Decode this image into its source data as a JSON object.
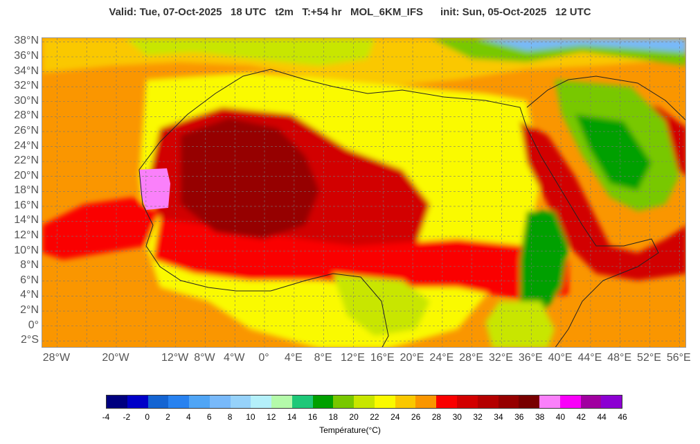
{
  "header": {
    "title": "Valid: Tue, 07-Oct-2025   18 UTC   t2m   T:+54 hr   MOL_6KM_IFS      init: Sun, 05-Oct-2025   12 UTC"
  },
  "map": {
    "variable": "t2m",
    "model": "MOL_6KM_IFS",
    "lat_labels": [
      "38°N",
      "36°N",
      "34°N",
      "32°N",
      "30°N",
      "28°N",
      "26°N",
      "24°N",
      "22°N",
      "20°N",
      "18°N",
      "16°N",
      "14°N",
      "12°N",
      "10°N",
      "8°N",
      "6°N",
      "4°N",
      "2°N",
      "0°",
      "2°S"
    ],
    "lon_labels": [
      "28°W",
      "20°W",
      "12°W",
      "8°W",
      "4°W",
      "0°",
      "4°E",
      "8°E",
      "12°E",
      "16°E",
      "20°E",
      "24°E",
      "28°E",
      "32°E",
      "36°E",
      "40°E",
      "44°E",
      "48°E",
      "52°E",
      "56°E"
    ],
    "lat_values": [
      38,
      36,
      34,
      32,
      30,
      28,
      26,
      24,
      22,
      20,
      18,
      16,
      14,
      12,
      10,
      8,
      6,
      4,
      2,
      0,
      -2
    ],
    "lon_values": [
      -28,
      -20,
      -12,
      -8,
      -4,
      0,
      4,
      8,
      12,
      16,
      20,
      24,
      28,
      32,
      36,
      40,
      44,
      48,
      52,
      56
    ],
    "extent": {
      "lon_min": -30,
      "lon_max": 57,
      "lat_min": -3,
      "lat_max": 38.5
    }
  },
  "colorbar": {
    "title": "Température(°C)",
    "ticks": [
      "-4",
      "-2",
      "0",
      "2",
      "4",
      "6",
      "8",
      "10",
      "12",
      "14",
      "16",
      "18",
      "20",
      "22",
      "24",
      "26",
      "28",
      "30",
      "32",
      "34",
      "36",
      "38",
      "40",
      "42",
      "44",
      "46"
    ],
    "colors": [
      "#00007f",
      "#0000c8",
      "#1464d2",
      "#2882f0",
      "#50a5f5",
      "#78b9fa",
      "#96d2fa",
      "#b4f0fa",
      "#b4faaa",
      "#1ec878",
      "#00a000",
      "#78c800",
      "#c8e600",
      "#fafa00",
      "#fac800",
      "#fa9600",
      "#fa0000",
      "#d20000",
      "#b40000",
      "#960000",
      "#780000",
      "#fa80fa",
      "#fa00fa",
      "#a000a0",
      "#8c00d2"
    ]
  }
}
